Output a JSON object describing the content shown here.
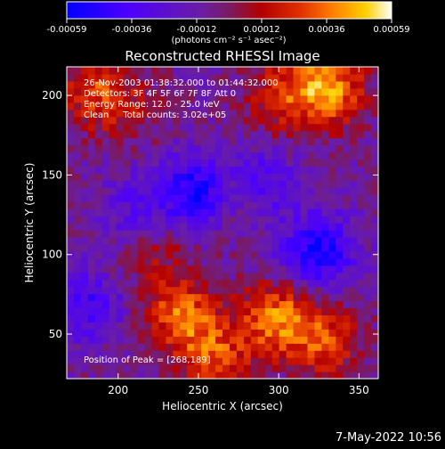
{
  "colorbar": {
    "ticks": [
      "-0.00059",
      "-0.00036",
      "-0.00012",
      "0.00012",
      "0.00036",
      "0.00059"
    ],
    "label": "(photons cm⁻² s⁻¹ asec⁻²)"
  },
  "annotations": {
    "time_range": "26-Nov-2003 01:38:32.000 to 01:44:32.000",
    "detectors": "Detectors: 3F 4F 5F 6F 7F 8F  Att 0",
    "energy": "Energy Range: 12.0 - 25.0 keV",
    "clean": "Clean     Total counts: 3.02e+05",
    "peak": "Position of Peak = [268,189]"
  },
  "footer_date": "7-May-2022 10:56",
  "chart_data": {
    "type": "heatmap",
    "title": "Reconstructed RHESSI Image",
    "xlabel": "Heliocentric X (arcsec)",
    "ylabel": "Heliocentric Y (arcsec)",
    "xlim": [
      168,
      362
    ],
    "ylim": [
      22,
      218
    ],
    "xticks": [
      200,
      250,
      300,
      350
    ],
    "yticks": [
      50,
      100,
      150,
      200
    ],
    "clim": [
      -0.00059,
      0.00059
    ],
    "colormap": [
      "#0000ff",
      "#4b00ff",
      "#6b1ea0",
      "#7a1a60",
      "#b40000",
      "#e03000",
      "#ff8000",
      "#ffd000",
      "#ffffff"
    ],
    "peak_position": [
      268,
      189
    ],
    "sources": [
      {
        "x": 330,
        "y": 205,
        "intensity": 0.0005
      },
      {
        "x": 300,
        "y": 200,
        "intensity": 0.00025
      },
      {
        "x": 185,
        "y": 205,
        "intensity": 0.0003
      },
      {
        "x": 240,
        "y": 62,
        "intensity": 0.0004
      },
      {
        "x": 300,
        "y": 60,
        "intensity": 0.00045
      },
      {
        "x": 330,
        "y": 45,
        "intensity": 0.0003
      },
      {
        "x": 260,
        "y": 35,
        "intensity": 0.00035
      },
      {
        "x": 270,
        "y": 140,
        "intensity": 0.0002
      },
      {
        "x": 225,
        "y": 100,
        "intensity": 0.00015
      },
      {
        "x": 205,
        "y": 190,
        "intensity": 0.00015
      }
    ],
    "minima": [
      {
        "x": 250,
        "y": 140,
        "intensity": -0.0005
      },
      {
        "x": 325,
        "y": 102,
        "intensity": -0.00045
      },
      {
        "x": 290,
        "y": 145,
        "intensity": -0.0003
      },
      {
        "x": 180,
        "y": 68,
        "intensity": -0.0003
      },
      {
        "x": 210,
        "y": 130,
        "intensity": -0.0002
      }
    ]
  }
}
